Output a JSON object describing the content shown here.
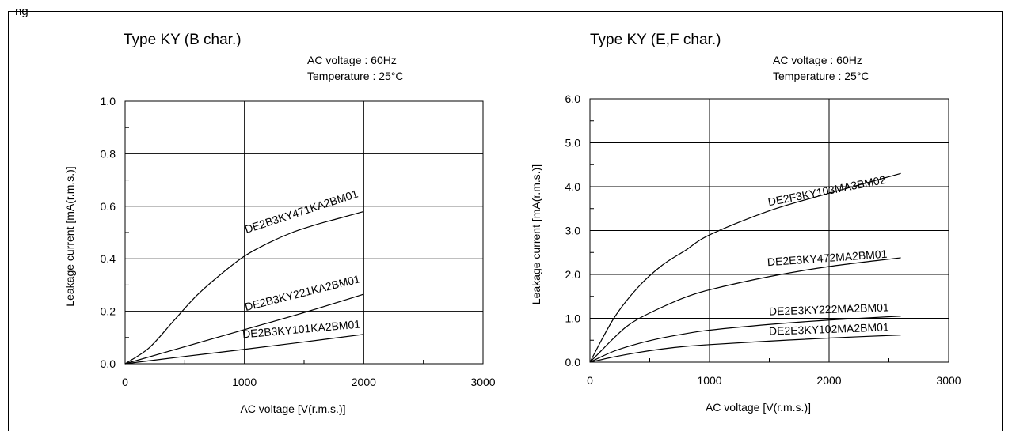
{
  "header": {
    "cutoff_text": "ng"
  },
  "chart_data": [
    {
      "type": "line",
      "title": "Type KY (B char.)",
      "conditions": [
        "AC voltage   : 60Hz",
        "Temperature : 25°C"
      ],
      "xlabel": "AC voltage [V(r.m.s.)]",
      "ylabel": "Leakage current [mA(r.m.s.)]",
      "xlim": [
        0,
        3000
      ],
      "ylim": [
        0,
        1.0
      ],
      "x_ticks": [
        0,
        1000,
        2000,
        3000
      ],
      "x_tick_labels": [
        "0",
        "1000",
        "2000",
        "3000"
      ],
      "y_ticks": [
        0,
        0.2,
        0.4,
        0.6,
        0.8,
        1.0
      ],
      "y_tick_labels": [
        "0.0",
        "0.2",
        "0.4",
        "0.6",
        "0.8",
        "1.0"
      ],
      "grid": true,
      "series": [
        {
          "name": "DE2B3KY471KA2BM01",
          "x": [
            0,
            200,
            400,
            600,
            800,
            1000,
            1200,
            1400,
            1600,
            1800,
            2000
          ],
          "y": [
            0,
            0.06,
            0.16,
            0.26,
            0.34,
            0.41,
            0.46,
            0.5,
            0.53,
            0.555,
            0.58
          ]
        },
        {
          "name": "DE2B3KY221KA2BM01",
          "x": [
            0,
            500,
            1000,
            1500,
            2000
          ],
          "y": [
            0,
            0.065,
            0.13,
            0.195,
            0.265
          ]
        },
        {
          "name": "DE2B3KY101KA2BM01",
          "x": [
            0,
            500,
            1000,
            1500,
            2000
          ],
          "y": [
            0,
            0.028,
            0.055,
            0.083,
            0.112
          ]
        }
      ]
    },
    {
      "type": "line",
      "title": "Type KY (E,F char.)",
      "conditions": [
        "AC voltage   : 60Hz",
        "Temperature : 25°C"
      ],
      "xlabel": "AC voltage [V(r.m.s.)]",
      "ylabel": "Leakage current [mA(r.m.s.)]",
      "xlim": [
        0,
        3000
      ],
      "ylim": [
        0,
        6.0
      ],
      "x_ticks": [
        0,
        1000,
        2000,
        3000
      ],
      "x_tick_labels": [
        "0",
        "1000",
        "2000",
        "3000"
      ],
      "y_ticks": [
        0,
        1,
        2,
        3,
        4,
        5,
        6
      ],
      "y_tick_labels": [
        "0.0",
        "1.0",
        "2.0",
        "3.0",
        "4.0",
        "5.0",
        "6.0"
      ],
      "grid": true,
      "series": [
        {
          "name": "DE2F3KY103MA3BM02",
          "x": [
            0,
            200,
            400,
            600,
            800,
            1000,
            1500,
            2000,
            2600
          ],
          "y": [
            0,
            1.0,
            1.7,
            2.2,
            2.55,
            2.9,
            3.45,
            3.85,
            4.3
          ]
        },
        {
          "name": "DE2E3KY472MA2BM01",
          "x": [
            0,
            200,
            300,
            400,
            600,
            800,
            1000,
            1500,
            2000,
            2600
          ],
          "y": [
            0,
            0.55,
            0.8,
            0.98,
            1.25,
            1.48,
            1.65,
            1.95,
            2.18,
            2.38
          ]
        },
        {
          "name": "DE2E3KY222MA2BM01",
          "x": [
            0,
            200,
            400,
            600,
            800,
            1000,
            1500,
            2000,
            2600
          ],
          "y": [
            0,
            0.25,
            0.42,
            0.55,
            0.65,
            0.73,
            0.86,
            0.96,
            1.05
          ]
        },
        {
          "name": "DE2E3KY102MA2BM01",
          "x": [
            0,
            200,
            400,
            600,
            800,
            1000,
            1500,
            2000,
            2600
          ],
          "y": [
            0,
            0.12,
            0.22,
            0.3,
            0.36,
            0.4,
            0.48,
            0.55,
            0.62
          ]
        }
      ]
    }
  ]
}
